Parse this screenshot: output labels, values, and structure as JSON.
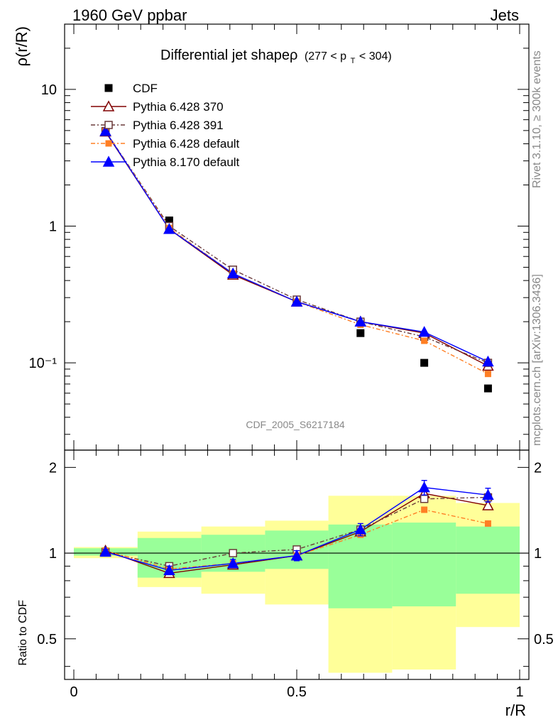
{
  "header": {
    "left": "1960 GeV ppbar",
    "right": "Jets"
  },
  "side_labels": {
    "rivet": "Rivet 3.1.10, ≥ 300k events",
    "mcplots": "mcplots.cern.ch [arXiv:1306.3436]"
  },
  "analysis_id": "CDF_2005_S6217184",
  "chart_data": {
    "type": "line",
    "title_parts": {
      "main": "Differential jet shapeρ",
      "range_pre": "(277 < p",
      "range_sub": "T",
      "range_post": " < 304)"
    },
    "xlabel": "r/R",
    "ylabel_top": "ρ(r/R)",
    "ylabel_bottom": "Ratio to CDF",
    "xlim": [
      -0.02,
      1.0
    ],
    "ylim_top": [
      0.023,
      30
    ],
    "ylog_top": true,
    "ylim_bottom": [
      0.36,
      2.3
    ],
    "ylog_bottom": true,
    "x_ticks": [
      "0",
      "0.5",
      "1"
    ],
    "y_ticks_top": [
      {
        "v": 10,
        "label": "10"
      },
      {
        "v": 1,
        "label": "1"
      },
      {
        "v": 0.1,
        "label": "10⁻¹"
      }
    ],
    "y_ticks_bottom": [
      "2",
      "1",
      "0.5"
    ],
    "x": [
      0.071,
      0.214,
      0.357,
      0.5,
      0.643,
      0.786,
      0.929
    ],
    "bin_edges": [
      -0.0,
      0.143,
      0.286,
      0.429,
      0.571,
      0.714,
      0.857,
      1.0
    ],
    "data": {
      "name": "CDF",
      "values": [
        4.9,
        1.1,
        0.48,
        0.29,
        0.165,
        0.1,
        0.065
      ]
    },
    "series": [
      {
        "name": "Pythia 6.428 370",
        "color": "#800000",
        "dash": "",
        "marker": "triangle-open",
        "values": [
          4.9,
          0.95,
          0.44,
          0.28,
          0.2,
          0.165,
          0.095
        ],
        "ratio": [
          1.02,
          0.85,
          0.91,
          0.98,
          1.19,
          1.62,
          1.47
        ]
      },
      {
        "name": "Pythia 6.428 391",
        "color": "#6a3a3a",
        "dash": "6,3,2,3",
        "marker": "square-open",
        "values": [
          4.95,
          1.0,
          0.48,
          0.29,
          0.2,
          0.155,
          0.1
        ],
        "ratio": [
          1.01,
          0.9,
          1.0,
          1.03,
          1.21,
          1.55,
          1.57
        ]
      },
      {
        "name": "Pythia 6.428 default",
        "color": "#ff7f24",
        "dash": "6,3,2,3",
        "marker": "square-filled",
        "values": [
          4.95,
          0.97,
          0.45,
          0.28,
          0.19,
          0.145,
          0.083
        ],
        "ratio": [
          1.02,
          0.88,
          0.92,
          0.98,
          1.16,
          1.42,
          1.27
        ]
      },
      {
        "name": "Pythia 8.170 default",
        "color": "#0000ff",
        "dash": "",
        "marker": "triangle-filled",
        "values": [
          4.95,
          0.95,
          0.45,
          0.28,
          0.2,
          0.168,
          0.102
        ],
        "ratio": [
          1.01,
          0.87,
          0.92,
          0.98,
          1.21,
          1.7,
          1.6
        ]
      }
    ],
    "band_inner": [
      [
        0.98,
        1.04
      ],
      [
        0.82,
        1.13
      ],
      [
        0.86,
        1.16
      ],
      [
        0.88,
        1.2
      ],
      [
        0.64,
        1.26
      ],
      [
        0.65,
        1.28
      ],
      [
        0.72,
        1.24
      ]
    ],
    "band_outer": [
      [
        0.96,
        1.05
      ],
      [
        0.76,
        1.19
      ],
      [
        0.72,
        1.24
      ],
      [
        0.66,
        1.3
      ],
      [
        0.38,
        1.59
      ],
      [
        0.39,
        1.59
      ],
      [
        0.55,
        1.5
      ]
    ],
    "ratio_err_8": [
      0.02,
      0.03,
      0.03,
      0.04,
      0.06,
      0.1,
      0.09
    ]
  }
}
